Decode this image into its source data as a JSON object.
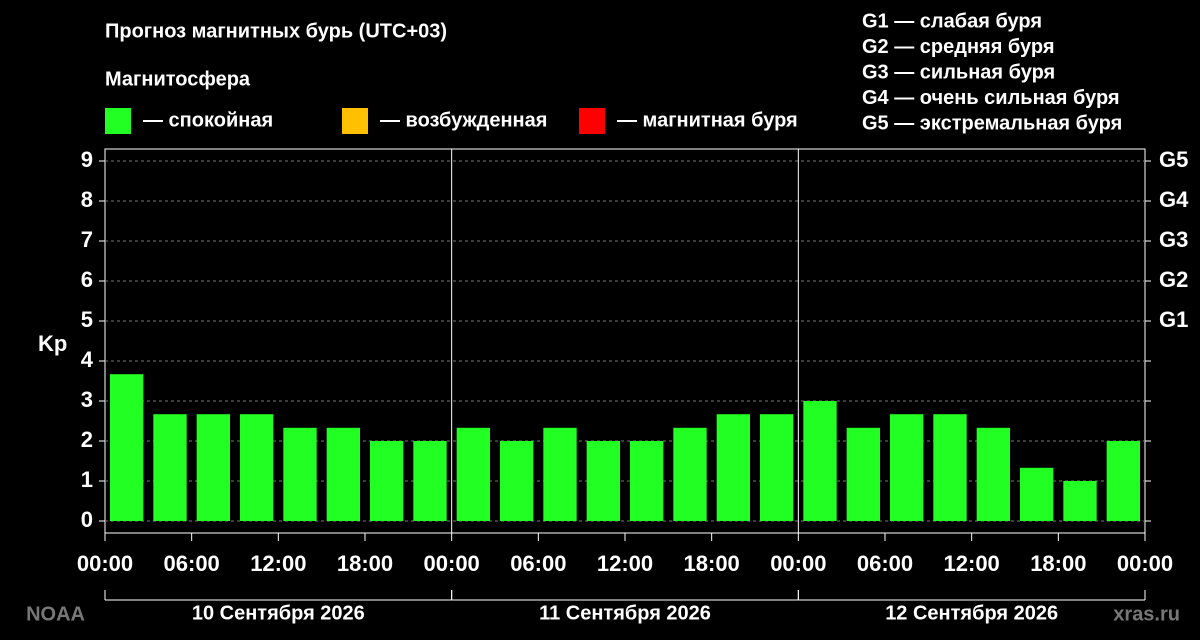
{
  "chart_data": {
    "type": "bar",
    "title": "Прогноз магнитных бурь (UTC+03)",
    "legend_title": "Магнитосфера",
    "legend": [
      {
        "name": "— спокойная",
        "color": "#22ff22"
      },
      {
        "name": "— возбужденная",
        "color": "#ffc000"
      },
      {
        "name": "— магнитная буря",
        "color": "#ff0000"
      }
    ],
    "storm_scale": [
      "G1 — слабая буря",
      "G2 — средняя буря",
      "G3 — сильная буря",
      "G4 — очень сильная буря",
      "G5 — экстремальная буря"
    ],
    "ylabel": "Kp",
    "x": [
      0,
      3,
      6,
      9,
      12,
      15,
      18,
      21,
      24,
      27,
      30,
      33,
      36,
      39,
      42,
      45,
      48,
      51,
      54,
      57,
      60,
      63,
      66,
      69
    ],
    "values": [
      3.67,
      2.67,
      2.67,
      2.67,
      2.33,
      2.33,
      2,
      2,
      2.33,
      2,
      2.33,
      2,
      2,
      2.33,
      2.67,
      2.67,
      3,
      2.33,
      2.67,
      2.67,
      2.33,
      1.33,
      1,
      2
    ],
    "color": "#22ff22",
    "xlim": [
      0,
      72
    ],
    "xticks": [
      {
        "value": 0,
        "label": "00:00"
      },
      {
        "value": 6,
        "label": "06:00"
      },
      {
        "value": 12,
        "label": "12:00"
      },
      {
        "value": 18,
        "label": "18:00"
      },
      {
        "value": 24,
        "label": "00:00"
      },
      {
        "value": 30,
        "label": "06:00"
      },
      {
        "value": 36,
        "label": "12:00"
      },
      {
        "value": 42,
        "label": "18:00"
      },
      {
        "value": 48,
        "label": "00:00"
      },
      {
        "value": 54,
        "label": "06:00"
      },
      {
        "value": 60,
        "label": "12:00"
      },
      {
        "value": 66,
        "label": "18:00"
      },
      {
        "value": 72,
        "label": "00:00"
      }
    ],
    "days": [
      "10 Сентября 2026",
      "11 Сентября 2026",
      "12 Сентября 2026"
    ],
    "ylim": [
      -0.3,
      9.3
    ],
    "yticks": [
      0,
      1,
      2,
      3,
      4,
      5,
      6,
      7,
      8,
      9
    ],
    "y2ticks": [
      {
        "value": 5,
        "label": "G1"
      },
      {
        "value": 6,
        "label": "G2"
      },
      {
        "value": 7,
        "label": "G3"
      },
      {
        "value": 8,
        "label": "G4"
      },
      {
        "value": 9,
        "label": "G5"
      }
    ],
    "grid": true,
    "source_left": "NOAA",
    "source_right": "xras.ru"
  }
}
